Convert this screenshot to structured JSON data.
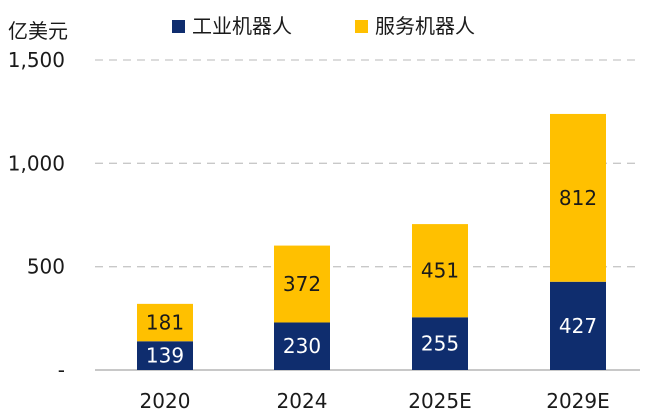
{
  "chart_data": {
    "type": "bar",
    "stacked": true,
    "categories": [
      "2020",
      "2024",
      "2025E",
      "2029E"
    ],
    "series": [
      {
        "name": "工业机器人",
        "values": [
          139,
          230,
          255,
          427
        ],
        "color": "#0f2d6e",
        "label_color": "#ffffff"
      },
      {
        "name": "服务机器人",
        "values": [
          181,
          372,
          451,
          812
        ],
        "color": "#ffc000",
        "label_color": "#1a1a1a"
      }
    ],
    "ylabel": "亿美元",
    "ylim": [
      0,
      1500
    ],
    "yticks": [
      {
        "value": 0,
        "label": "-"
      },
      {
        "value": 500,
        "label": "500"
      },
      {
        "value": 1000,
        "label": "1,000"
      },
      {
        "value": 1500,
        "label": "1,500"
      }
    ],
    "grid": true,
    "grid_style": "dashed",
    "legend_position": "top"
  }
}
